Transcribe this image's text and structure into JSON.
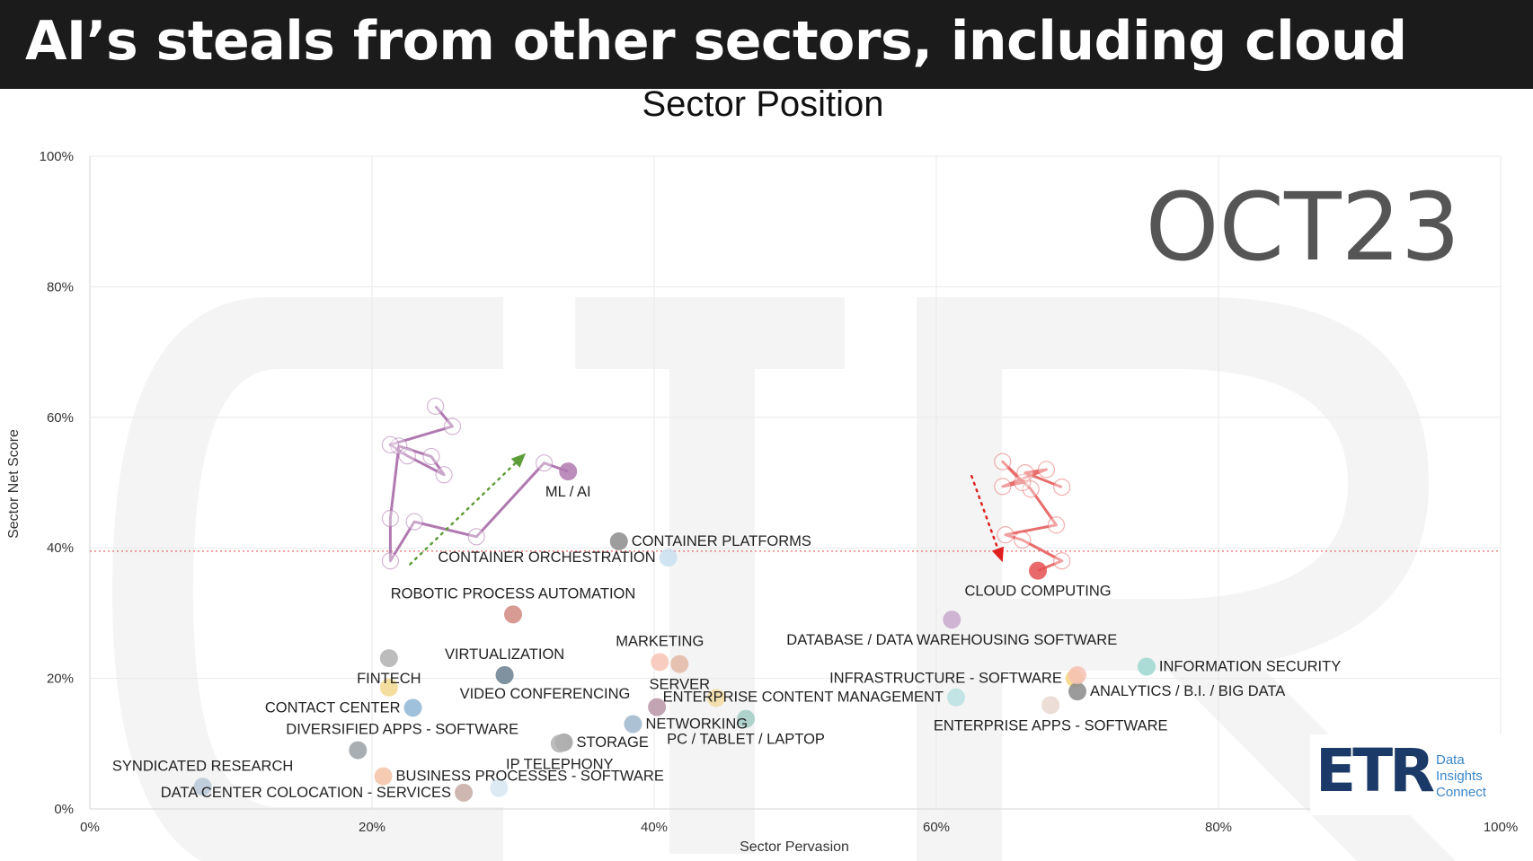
{
  "header": {
    "title": "AI’s steals from other sectors, including cloud"
  },
  "logo": {
    "mark": "ETR",
    "tagline": [
      "Data",
      "Insights",
      "Connect"
    ]
  },
  "colors": {
    "ml_ai": "#b07ab0",
    "cloud": "#e86d6d",
    "up_arrow": "#5e9e3a",
    "down_arrow": "#e02020",
    "reference_line": "#e04040",
    "background_watermark": "#f4f4f4"
  },
  "chart_data": {
    "type": "scatter",
    "title": "Sector Position",
    "stamp": "OCT23",
    "xlabel": "Sector Pervasion",
    "ylabel": "Sector Net Score",
    "xlim": [
      0,
      100
    ],
    "ylim": [
      0,
      100
    ],
    "x_ticks": [
      "0%",
      "20%",
      "40%",
      "60%",
      "80%",
      "100%"
    ],
    "y_ticks": [
      "0%",
      "20%",
      "40%",
      "60%",
      "80%",
      "100%"
    ],
    "grid": true,
    "reference_line": {
      "axis": "y",
      "value": 39.5,
      "style": "dotted"
    },
    "points": [
      {
        "label": "ML / AI",
        "x": 33.9,
        "y": 51.7,
        "color": "#b07ab0",
        "label_anchor": "below"
      },
      {
        "label": "CONTAINER PLATFORMS",
        "x": 37.5,
        "y": 41.0,
        "color": "#8c8c8c",
        "label_anchor": "right"
      },
      {
        "label": "CONTAINER ORCHESTRATION",
        "x": 41.0,
        "y": 38.5,
        "color": "#c8dfee",
        "label_anchor": "left"
      },
      {
        "label": "ROBOTIC PROCESS AUTOMATION",
        "x": 30.0,
        "y": 29.8,
        "color": "#d08a80",
        "label_anchor": "above"
      },
      {
        "label": "CLOUD COMPUTING",
        "x": 67.2,
        "y": 36.5,
        "color": "#e55050",
        "label_anchor": "below"
      },
      {
        "label": "DATABASE / DATA WAREHOUSING SOFTWARE",
        "x": 61.1,
        "y": 29.0,
        "color": "#c8a8cc",
        "label_anchor": "below"
      },
      {
        "label": "INFRASTRUCTURE - SOFTWARE",
        "x": 69.8,
        "y": 20.0,
        "color": "#f4d57e",
        "label_anchor": "left"
      },
      {
        "label": "INFORMATION SECURITY",
        "x": 74.9,
        "y": 21.8,
        "color": "#9ed6cf",
        "label_anchor": "right"
      },
      {
        "label": "ANALYTICS / B.I. / BIG DATA",
        "x": 70.0,
        "y": 18.0,
        "color": "#8a8a8a",
        "label_anchor": "right"
      },
      {
        "label": "ENTERPRISE APPS - SOFTWARE",
        "x": 68.1,
        "y": 15.9,
        "color": "#e9d7cf",
        "label_anchor": "below"
      },
      {
        "label": "ENTERPRISE CONTENT MANAGEMENT",
        "x": 61.4,
        "y": 17.1,
        "color": "#b8e0e0",
        "label_anchor": "left"
      },
      {
        "label": "MARKETING",
        "x": 40.4,
        "y": 22.5,
        "color": "#f7c3b4",
        "label_anchor": "above"
      },
      {
        "label": "SERVER",
        "x": 41.8,
        "y": 22.2,
        "color": "#e2b7a6",
        "label_anchor": "below"
      },
      {
        "label": "",
        "x": 70.0,
        "y": 20.5,
        "color": "#f5c1b4",
        "label_anchor": "none"
      },
      {
        "label": "",
        "x": 44.4,
        "y": 17.0,
        "color": "#f2dba0",
        "label_anchor": "none"
      },
      {
        "label": "",
        "x": 40.2,
        "y": 15.6,
        "color": "#b894a6",
        "label_anchor": "none"
      },
      {
        "label": "NETWORKING",
        "x": 38.5,
        "y": 13.0,
        "color": "#9fb6cc",
        "label_anchor": "right"
      },
      {
        "label": "PC / TABLET / LAPTOP",
        "x": 46.5,
        "y": 13.8,
        "color": "#a2ccc4",
        "label_anchor": "below"
      },
      {
        "label": "VIRTUALIZATION",
        "x": 29.4,
        "y": 20.5,
        "color": "#7c8f9c",
        "label_anchor": "above"
      },
      {
        "label": "VIDEO CONFERENCING",
        "x": 29.4,
        "y": 20.5,
        "color": "#7c8f9c",
        "label_anchor": "below-right"
      },
      {
        "label": "FINTECH",
        "x": 21.2,
        "y": 23.1,
        "color": "#b0b0b0",
        "label_anchor": "below"
      },
      {
        "label": "",
        "x": 21.2,
        "y": 18.6,
        "color": "#f2d88e",
        "label_anchor": "none"
      },
      {
        "label": "CONTACT CENTER",
        "x": 22.9,
        "y": 15.5,
        "color": "#8fb6d6",
        "label_anchor": "left"
      },
      {
        "label": "DIVERSIFIED APPS - SOFTWARE",
        "x": 19.0,
        "y": 9.0,
        "color": "#9aa0a6",
        "label_anchor": "above-right"
      },
      {
        "label": "STORAGE",
        "x": 33.6,
        "y": 10.2,
        "color": "#a0a0a0",
        "label_anchor": "right"
      },
      {
        "label": "IP TELEPHONY",
        "x": 33.3,
        "y": 10.0,
        "color": "#b0b0b0",
        "label_anchor": "below"
      },
      {
        "label": "SYNDICATED RESEARCH",
        "x": 8.0,
        "y": 3.4,
        "color": "#b7c7d6",
        "label_anchor": "above"
      },
      {
        "label": "BUSINESS PROCESSES - SOFTWARE",
        "x": 20.8,
        "y": 5.0,
        "color": "#f5c2a6",
        "label_anchor": "right"
      },
      {
        "label": "DATA CENTER COLOCATION - SERVICES",
        "x": 26.5,
        "y": 2.5,
        "color": "#c4aaa2",
        "label_anchor": "left"
      },
      {
        "label": "",
        "x": 29.0,
        "y": 3.2,
        "color": "#d6e6f2",
        "label_anchor": "none"
      }
    ],
    "trails": [
      {
        "name": "ML / AI",
        "color": "#b07ab0",
        "points": [
          [
            33.9,
            51.7
          ],
          [
            32.2,
            53.0
          ],
          [
            27.4,
            41.7
          ],
          [
            23.0,
            44.0
          ],
          [
            21.3,
            38.0
          ],
          [
            21.3,
            44.5
          ],
          [
            21.9,
            55.6
          ],
          [
            24.2,
            54.0
          ],
          [
            25.1,
            51.2
          ],
          [
            22.5,
            54.1
          ],
          [
            21.3,
            55.8
          ],
          [
            25.7,
            58.6
          ],
          [
            24.5,
            61.7
          ]
        ]
      },
      {
        "name": "CLOUD COMPUTING",
        "color": "#e86d6d",
        "points": [
          [
            67.2,
            36.5
          ],
          [
            68.9,
            38.0
          ],
          [
            66.1,
            41.2
          ],
          [
            64.9,
            42.0
          ],
          [
            68.5,
            43.5
          ],
          [
            66.7,
            49.0
          ],
          [
            64.7,
            53.2
          ],
          [
            66.1,
            50.0
          ],
          [
            64.7,
            49.4
          ],
          [
            67.8,
            52.0
          ],
          [
            66.3,
            51.5
          ],
          [
            68.9,
            49.3
          ]
        ]
      }
    ],
    "trend_arrows": [
      {
        "from": [
          22.7,
          37.5
        ],
        "to": [
          30.9,
          54.5
        ],
        "color": "#5e9e3a"
      },
      {
        "from": [
          62.5,
          51.0
        ],
        "to": [
          64.7,
          37.8
        ],
        "color": "#e02020"
      }
    ]
  }
}
